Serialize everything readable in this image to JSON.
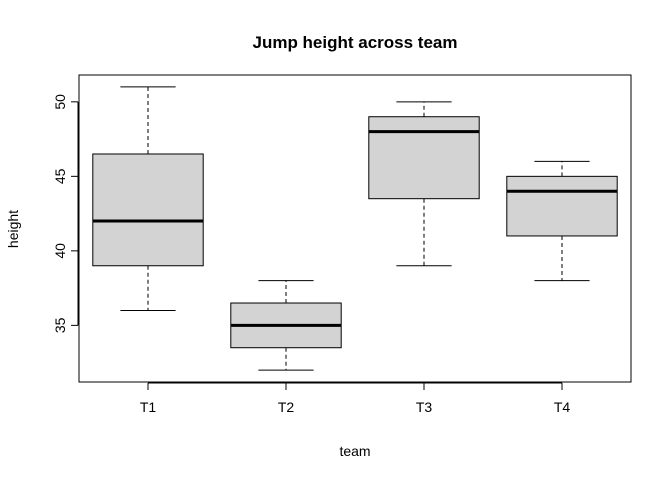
{
  "chart_data": {
    "type": "boxplot",
    "title": "Jump height across team",
    "xlabel": "team",
    "ylabel": "height",
    "categories": [
      "T1",
      "T2",
      "T3",
      "T4"
    ],
    "y_ticks": [
      35,
      40,
      45,
      50
    ],
    "ylim": [
      31.2,
      51.8
    ],
    "boxes": [
      {
        "name": "T1",
        "min": 36,
        "q1": 39,
        "median": 42,
        "q3": 46.5,
        "max": 51
      },
      {
        "name": "T2",
        "min": 32,
        "q1": 33.5,
        "median": 35,
        "q3": 36.5,
        "max": 38
      },
      {
        "name": "T3",
        "min": 39,
        "q1": 43.5,
        "median": 48,
        "q3": 49,
        "max": 50
      },
      {
        "name": "T4",
        "min": 38,
        "q1": 41,
        "median": 44,
        "q3": 45,
        "max": 46
      }
    ],
    "box_fill": "#d3d3d3",
    "line_color": "#000000"
  }
}
